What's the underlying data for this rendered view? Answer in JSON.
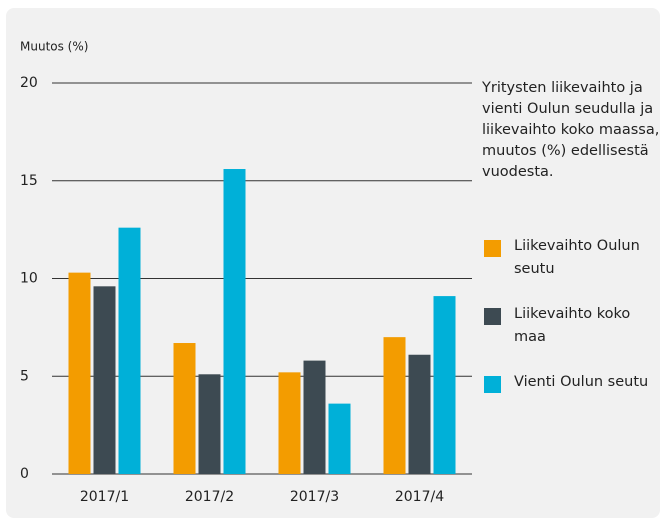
{
  "chart_data": {
    "type": "bar",
    "y_label": "Muutos (%)",
    "description": "Yritysten liikevaihto ja vienti Oulun seudulla ja liikevaihto koko maassa, muutos (%) edellisestä vuodesta.",
    "categories": [
      "2017/1",
      "2017/2",
      "2017/3",
      "2017/4"
    ],
    "series": [
      {
        "name": "Liikevaihto Oulun seutu",
        "color": "#f39c00",
        "values": [
          10.3,
          6.7,
          5.2,
          7.0
        ]
      },
      {
        "name": "Liikevaihto koko maa",
        "color": "#3d4a52",
        "values": [
          9.6,
          5.1,
          5.8,
          6.1
        ]
      },
      {
        "name": "Vienti Oulun seutu",
        "color": "#00b0d8",
        "values": [
          12.6,
          15.6,
          3.6,
          9.1
        ]
      }
    ],
    "ylim": [
      0,
      20
    ],
    "yticks": [
      0,
      5,
      10,
      15,
      20
    ],
    "grid": true
  }
}
